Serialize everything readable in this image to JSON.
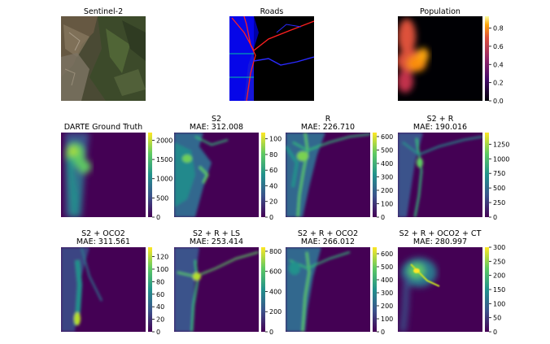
{
  "figure": {
    "top_row": [
      {
        "title": "Sentinel-2",
        "kind": "satellite"
      },
      {
        "title": "Roads",
        "kind": "roads"
      },
      {
        "title": "Population",
        "kind": "population",
        "colorbar": {
          "ticks": [
            "0.0",
            "0.2",
            "0.4",
            "0.6",
            "0.8"
          ],
          "vmin": 0,
          "vmax": 0.93,
          "cmap": "inferno"
        }
      }
    ]
  },
  "chart_data": [
    {
      "type": "heatmap",
      "title": "DARTE Ground Truth",
      "subtitle": "",
      "cmap": "viridis",
      "vmin": 0,
      "vmax": 2200,
      "colorbar_ticks": [
        "0",
        "500",
        "1000",
        "1500",
        "2000"
      ]
    },
    {
      "type": "heatmap",
      "title": "S2",
      "subtitle": "MAE: 312.008",
      "cmap": "viridis",
      "vmin": 0,
      "vmax": 108,
      "colorbar_ticks": [
        "0",
        "20",
        "40",
        "60",
        "80",
        "100"
      ]
    },
    {
      "type": "heatmap",
      "title": "R",
      "subtitle": "MAE: 226.710",
      "cmap": "viridis",
      "vmin": 0,
      "vmax": 630,
      "colorbar_ticks": [
        "0",
        "100",
        "200",
        "300",
        "400",
        "500",
        "600"
      ]
    },
    {
      "type": "heatmap",
      "title": "S2 + R",
      "subtitle": "MAE: 190.016",
      "cmap": "viridis",
      "vmin": 0,
      "vmax": 1450,
      "colorbar_ticks": [
        "0",
        "250",
        "500",
        "750",
        "1000",
        "1250"
      ]
    },
    {
      "type": "heatmap",
      "title": "S2 + OCO2",
      "subtitle": "MAE: 311.561",
      "cmap": "viridis",
      "vmin": 0,
      "vmax": 135,
      "colorbar_ticks": [
        "0",
        "20",
        "40",
        "60",
        "80",
        "100",
        "120"
      ]
    },
    {
      "type": "heatmap",
      "title": "S2 + R + LS",
      "subtitle": "MAE: 253.414",
      "cmap": "viridis",
      "vmin": 0,
      "vmax": 840,
      "colorbar_ticks": [
        "0",
        "200",
        "400",
        "600",
        "800"
      ]
    },
    {
      "type": "heatmap",
      "title": "S2 + R + OCO2",
      "subtitle": "MAE: 266.012",
      "cmap": "viridis",
      "vmin": 0,
      "vmax": 650,
      "colorbar_ticks": [
        "0",
        "100",
        "200",
        "300",
        "400",
        "500",
        "600"
      ]
    },
    {
      "type": "heatmap",
      "title": "S2 + R + OCO2 + CT",
      "subtitle": "MAE: 280.997",
      "cmap": "viridis",
      "vmin": 0,
      "vmax": 300,
      "colorbar_ticks": [
        "0",
        "50",
        "100",
        "150",
        "200",
        "250",
        "300"
      ]
    }
  ]
}
